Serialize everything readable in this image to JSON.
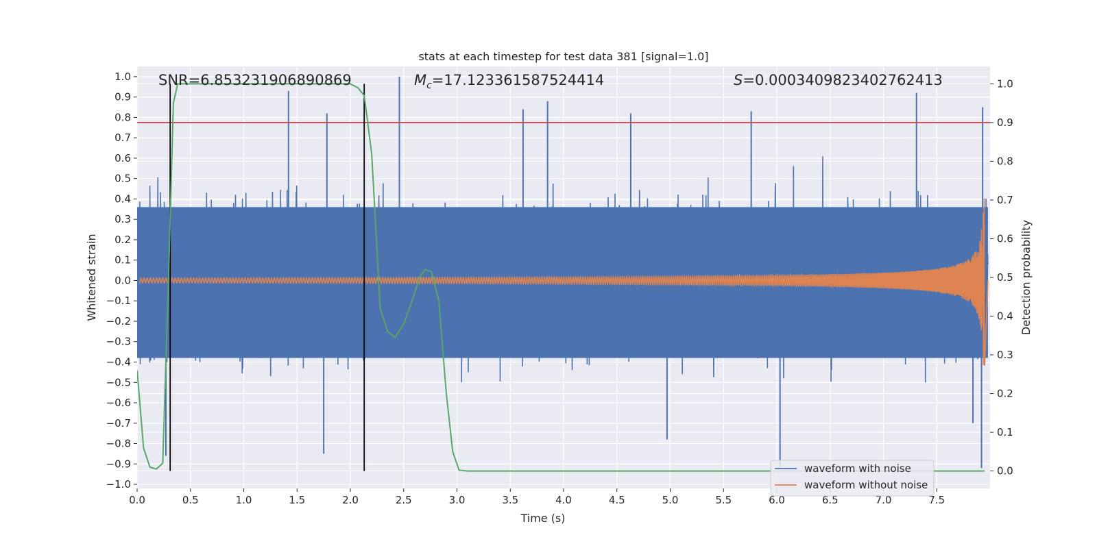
{
  "chart_data": {
    "type": "line",
    "title": "stats at each timestep for test data 381 [signal=1.0]",
    "xlabel": "Time (s)",
    "ylabel": "Whitened strain",
    "y2label": "Detection probability",
    "xlim": [
      0.0,
      8.0
    ],
    "ylim": [
      -1.02,
      1.05
    ],
    "y2lim": [
      -0.045,
      1.045
    ],
    "xticks": [
      0.0,
      0.5,
      1.0,
      1.5,
      2.0,
      2.5,
      3.0,
      3.5,
      4.0,
      4.5,
      5.0,
      5.5,
      6.0,
      6.5,
      7.0,
      7.5
    ],
    "xtick_labels": [
      "0.0",
      "0.5",
      "1.0",
      "1.5",
      "2.0",
      "2.5",
      "3.0",
      "3.5",
      "4.0",
      "4.5",
      "5.0",
      "5.5",
      "6.0",
      "6.5",
      "7.0",
      "7.5"
    ],
    "yticks": [
      -1.0,
      -0.9,
      -0.8,
      -0.7,
      -0.6,
      -0.5,
      -0.4,
      -0.3,
      -0.2,
      -0.1,
      0.0,
      0.1,
      0.2,
      0.3,
      0.4,
      0.5,
      0.6,
      0.7,
      0.8,
      0.9,
      1.0
    ],
    "ytick_labels": [
      "−1.0",
      "−0.9",
      "−0.8",
      "−0.7",
      "−0.6",
      "−0.5",
      "−0.4",
      "−0.3",
      "−0.2",
      "−0.1",
      "0.0",
      "0.1",
      "0.2",
      "0.3",
      "0.4",
      "0.5",
      "0.6",
      "0.7",
      "0.8",
      "0.9",
      "1.0"
    ],
    "y2ticks": [
      0.0,
      0.1,
      0.2,
      0.3,
      0.4,
      0.5,
      0.6,
      0.7,
      0.8,
      0.9,
      1.0
    ],
    "y2tick_labels": [
      "0.0",
      "0.1",
      "0.2",
      "0.3",
      "0.4",
      "0.5",
      "0.6",
      "0.7",
      "0.8",
      "0.9",
      "1.0"
    ],
    "annotations": {
      "snr": "SNR=6.853231906890869",
      "mc_symbol": "M",
      "mc_sub": "c",
      "mc_value": "=17.123361587524414",
      "s_symbol": "S",
      "s_value": "=0.0003409823402762413"
    },
    "threshold": {
      "axis": "right",
      "value": 0.9,
      "color": "#c44e52"
    },
    "vlines": {
      "x": [
        0.31,
        2.13
      ],
      "color": "#000000"
    },
    "series": [
      {
        "name": "waveform with noise",
        "color": "#4c72b0",
        "description": "whitened noisy strain, envelope roughly ±0.45 with spikes",
        "envelope_upper": 0.42,
        "envelope_lower": -0.45,
        "spikes": [
          {
            "x": 1.42,
            "y": 0.93
          },
          {
            "x": 1.78,
            "y": 0.82
          },
          {
            "x": 2.46,
            "y": 1.0
          },
          {
            "x": 3.85,
            "y": 0.88
          },
          {
            "x": 3.62,
            "y": 0.84
          },
          {
            "x": 4.63,
            "y": 0.82
          },
          {
            "x": 5.76,
            "y": 0.83
          },
          {
            "x": 7.31,
            "y": 0.92
          },
          {
            "x": 7.93,
            "y": 0.85
          },
          {
            "x": 0.27,
            "y": -0.86
          },
          {
            "x": 1.75,
            "y": -0.85
          },
          {
            "x": 6.03,
            "y": -0.92
          },
          {
            "x": 7.92,
            "y": -0.92
          },
          {
            "x": 7.84,
            "y": -0.7
          },
          {
            "x": 4.97,
            "y": -0.78
          }
        ]
      },
      {
        "name": "waveform without noise",
        "color": "#dd8452",
        "description": "chirp signal, amplitude growing toward merger near t=7.95 s",
        "merger_time": 7.95,
        "start_amplitude": 0.012,
        "peak_amplitude": 0.42
      },
      {
        "name": "detection probability",
        "axis": "right",
        "color": "#55a868",
        "x": [
          0.0,
          0.06,
          0.12,
          0.18,
          0.24,
          0.3,
          0.34,
          0.38,
          0.45,
          0.6,
          1.0,
          1.5,
          2.0,
          2.07,
          2.13,
          2.2,
          2.28,
          2.35,
          2.42,
          2.5,
          2.58,
          2.65,
          2.7,
          2.76,
          2.83,
          2.9,
          2.96,
          3.02,
          3.1,
          3.5,
          4.0,
          5.0,
          6.0,
          7.0,
          7.95
        ],
        "y": [
          0.26,
          0.06,
          0.01,
          0.005,
          0.02,
          0.55,
          0.95,
          1.0,
          1.0,
          1.0,
          1.0,
          1.0,
          1.0,
          0.99,
          0.97,
          0.82,
          0.42,
          0.36,
          0.345,
          0.38,
          0.44,
          0.5,
          0.52,
          0.515,
          0.44,
          0.2,
          0.05,
          0.002,
          0.0,
          0.0,
          0.0,
          0.0,
          0.0,
          0.0,
          0.0
        ]
      }
    ],
    "legend": {
      "position": "lower-right",
      "entries": [
        {
          "label": "waveform with noise",
          "color": "#4c72b0"
        },
        {
          "label": "waveform without noise",
          "color": "#dd8452"
        }
      ]
    },
    "style": {
      "plot_background": "#eaeaf2",
      "grid_color": "#ffffff",
      "grid": true
    }
  }
}
